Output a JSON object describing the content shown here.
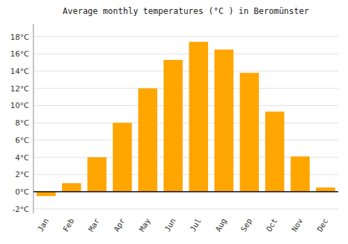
{
  "chart_data": {
    "type": "bar",
    "title": "Average monthly temperatures (°C ) in Beromünster",
    "categories": [
      "Jan",
      "Feb",
      "Mar",
      "Apr",
      "May",
      "Jun",
      "Jul",
      "Aug",
      "Sep",
      "Oct",
      "Nov",
      "Dec"
    ],
    "values": [
      -0.5,
      1.0,
      4.0,
      8.0,
      12.0,
      15.3,
      17.4,
      16.5,
      13.8,
      9.3,
      4.1,
      0.5
    ],
    "color": "#FFA500",
    "ylim": [
      -2.5,
      19.5
    ],
    "yticks": [
      {
        "value": -2,
        "label": "-2°C"
      },
      {
        "value": 0,
        "label": "0°C"
      },
      {
        "value": 2,
        "label": "2°C"
      },
      {
        "value": 4,
        "label": "4°C"
      },
      {
        "value": 6,
        "label": "6°C"
      },
      {
        "value": 8,
        "label": "8°C"
      },
      {
        "value": 10,
        "label": "10°C"
      },
      {
        "value": 12,
        "label": "12°C"
      },
      {
        "value": 14,
        "label": "14°C"
      },
      {
        "value": 16,
        "label": "16°C"
      },
      {
        "value": 18,
        "label": "18°C"
      }
    ],
    "grid": true
  }
}
